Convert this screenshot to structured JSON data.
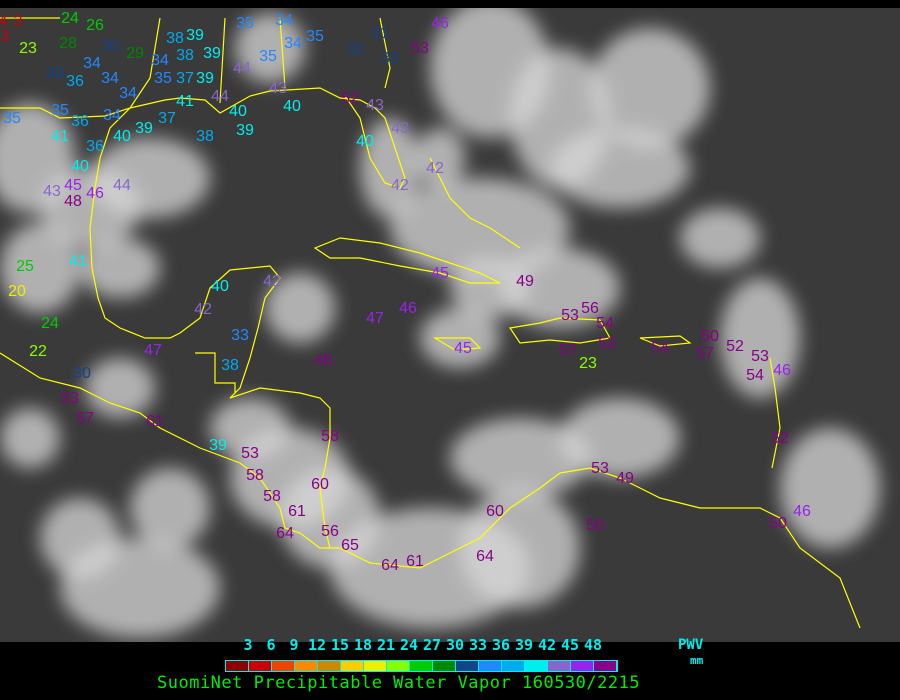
{
  "legend": {
    "ticks": [
      "3",
      "6",
      "9",
      "12",
      "15",
      "18",
      "21",
      "24",
      "27",
      "30",
      "33",
      "36",
      "39",
      "42",
      "45",
      "48"
    ],
    "colors": [
      "#8b0000",
      "#cc0000",
      "#ee4400",
      "#ff8800",
      "#cc8800",
      "#ffcc00",
      "#eeee00",
      "#88ff00",
      "#00cc00",
      "#008800",
      "#114488",
      "#2288ff",
      "#00aaee",
      "#00eeee",
      "#8866cc",
      "#9922ee",
      "#880088"
    ],
    "unit_label": "PWV",
    "unit": "mm"
  },
  "caption": "SuomiNet Precipitable Water Vapor 160530/2215",
  "map": {
    "background_color": "#3a3a3a",
    "coastline_color": "#ffff00",
    "station_values": [
      4,
      3,
      3,
      24,
      26,
      23,
      28,
      30,
      29,
      34,
      30,
      36,
      34,
      34,
      35,
      34,
      35,
      41,
      36,
      36,
      40,
      40,
      39,
      37,
      45,
      46,
      48,
      44,
      43,
      38,
      41,
      35,
      37,
      39,
      34,
      38,
      39,
      38,
      39,
      35,
      34,
      34,
      35,
      35,
      44,
      44,
      40,
      39,
      43,
      40,
      31,
      32,
      32,
      53,
      46,
      52,
      43,
      43,
      40,
      42,
      42,
      25,
      20,
      24,
      22,
      41,
      40,
      42,
      42,
      33,
      38,
      47,
      30,
      53,
      57,
      61,
      39,
      53,
      58,
      58,
      60,
      61,
      64,
      56,
      65,
      64,
      61,
      58,
      48,
      47,
      46,
      45,
      49,
      45,
      53,
      56,
      54,
      57,
      52,
      23,
      54,
      50,
      57,
      52,
      53,
      54,
      46,
      52,
      53,
      49,
      50,
      60,
      64,
      50,
      46
    ]
  }
}
